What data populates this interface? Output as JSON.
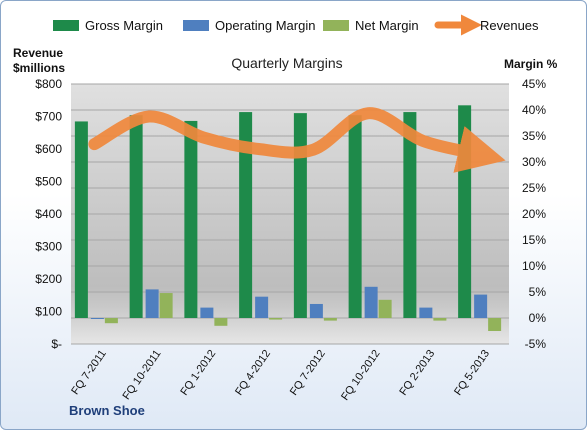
{
  "chart_data": {
    "type": "bar",
    "title": "Quarterly Margins",
    "left_axis_title": "Revenue $millions",
    "right_axis_title": "Margin %",
    "footer_label": "Brown Shoe",
    "categories": [
      "FQ 7-2011",
      "FQ 10-2011",
      "FQ 1-2012",
      "FQ 4-2012",
      "FQ 7-2012",
      "FQ 10-2012",
      "FQ 2-2013",
      "FQ 5-2013"
    ],
    "left_axis": {
      "range": [
        0,
        800
      ],
      "ticks": [
        "$-",
        "$100",
        "$200",
        "$300",
        "$400",
        "$500",
        "$600",
        "$700",
        "$800"
      ]
    },
    "right_axis": {
      "range": [
        -5,
        45
      ],
      "unit": "%",
      "ticks": [
        "-5%",
        "0%",
        "5%",
        "10%",
        "15%",
        "20%",
        "25%",
        "30%",
        "35%",
        "40%",
        "45%"
      ]
    },
    "series": [
      {
        "name": "Gross Margin",
        "axis": "right",
        "type": "bar",
        "color": "#1e8a4a",
        "values": [
          37.8,
          39.0,
          37.9,
          39.6,
          39.4,
          39.0,
          39.6,
          40.9
        ]
      },
      {
        "name": "Operating Margin",
        "axis": "right",
        "type": "bar",
        "color": "#4f7fbf",
        "values": [
          0.0,
          5.5,
          2.0,
          4.1,
          2.7,
          6.0,
          2.0,
          4.5
        ]
      },
      {
        "name": "Net Margin",
        "axis": "right",
        "type": "bar",
        "color": "#92b35a",
        "values": [
          -1.0,
          4.8,
          -1.5,
          -0.3,
          -0.5,
          3.5,
          -0.5,
          -2.5
        ]
      },
      {
        "name": "Revenues",
        "axis": "left",
        "type": "line",
        "color": "#f0883c",
        "values": [
          615,
          700,
          635,
          600,
          598,
          710,
          625,
          585
        ]
      }
    ],
    "grid": true,
    "legend_position": "top"
  }
}
